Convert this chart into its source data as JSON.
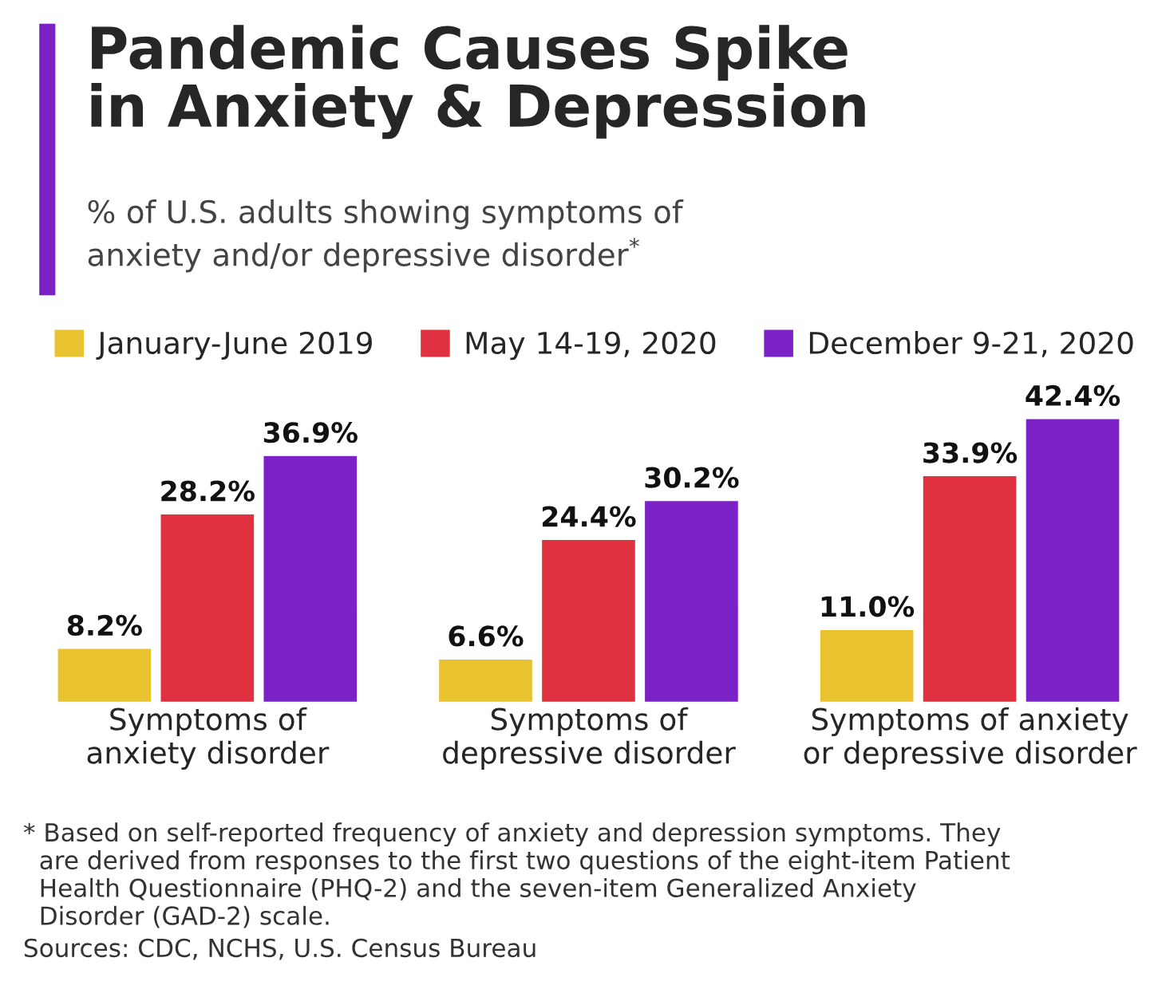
{
  "chart_data": {
    "type": "bar",
    "title": "Pandemic Causes Spike\nin Anxiety & Depression",
    "subtitle": "% of U.S. adults showing symptoms of\nanxiety and/or depressive disorder$^{*}$",
    "categories": [
      "Symptoms of\nanxiety disorder",
      "Symptoms of\ndepressive disorder",
      "Symptoms of anxiety\nor depressive disorder"
    ],
    "series": [
      {
        "name": "January-June 2019",
        "color": "#e9c32f",
        "values": [
          8.2,
          6.6,
          11.0
        ],
        "value_labels": [
          "8.2%",
          "6.6%",
          "11.0%"
        ]
      },
      {
        "name": "May 14-19, 2020",
        "color": "#e03141",
        "values": [
          28.2,
          24.4,
          33.9
        ],
        "value_labels": [
          "28.2%",
          "24.4%",
          "33.9%"
        ]
      },
      {
        "name": "December 9-21, 2020",
        "color": "#7b22c6",
        "values": [
          36.9,
          30.2,
          42.4
        ],
        "value_labels": [
          "36.9%",
          "30.2%",
          "42.4%"
        ]
      }
    ],
    "legend": "top",
    "grid": false,
    "annotations": [
      "* Based on self-reported frequency of anxiety and depression symptoms. They\n  are derived from responses to the first two questions of the eight-item Patient\n  Health Questionnaire (PHQ-2) and the seven-item Generalized Anxiety\n  Disorder (GAD-2) scale.",
      "Sources: CDC, NCHS, U.S. Census Bureau"
    ]
  }
}
